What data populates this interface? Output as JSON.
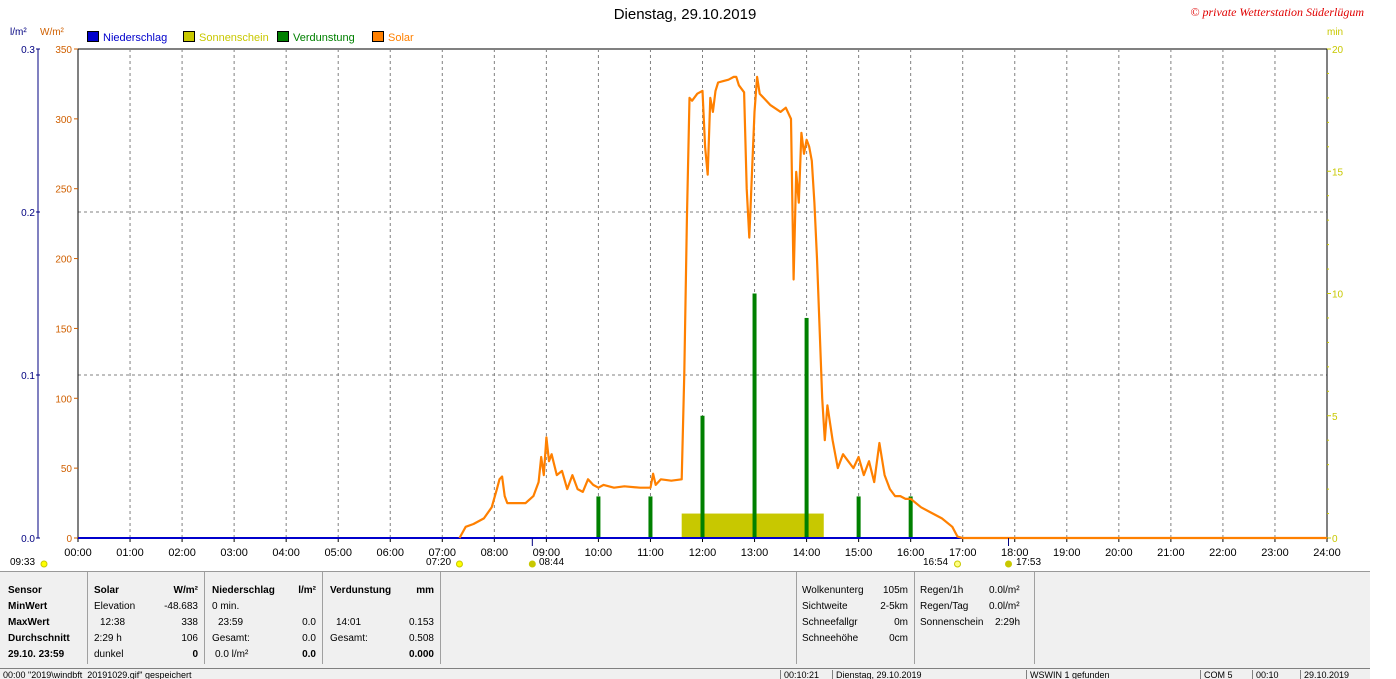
{
  "chart_data": {
    "type": "line",
    "title": "Dienstag, 29.10.2019",
    "x_unit": "hours",
    "x_range": [
      0,
      24
    ],
    "x_ticks": [
      "00:00",
      "01:00",
      "02:00",
      "03:00",
      "04:00",
      "05:00",
      "06:00",
      "07:00",
      "08:00",
      "09:00",
      "10:00",
      "11:00",
      "12:00",
      "13:00",
      "14:00",
      "15:00",
      "16:00",
      "17:00",
      "18:00",
      "19:00",
      "20:00",
      "21:00",
      "22:00",
      "23:00",
      "24:00"
    ],
    "left_axis_rain": {
      "unit": "l/m²",
      "range": [
        0,
        0.3
      ],
      "ticks": [
        "0.0",
        "0.1",
        "0.2",
        "0.3"
      ]
    },
    "left_axis_solar": {
      "unit": "W/m²",
      "range": [
        0,
        350
      ],
      "ticks": [
        "0",
        "50",
        "100",
        "150",
        "200",
        "250",
        "300",
        "350"
      ]
    },
    "right_axis": {
      "unit": "min",
      "range": [
        0,
        20
      ],
      "ticks": [
        "0",
        "5",
        "10",
        "15",
        "20"
      ]
    },
    "legend": [
      {
        "name": "Niederschlag",
        "color": "#0000cc"
      },
      {
        "name": "Sonnenschein",
        "color": "#c8c800"
      },
      {
        "name": "Verdunstung",
        "color": "#008000"
      },
      {
        "name": "Solar",
        "color": "#ff8000"
      }
    ],
    "series": [
      {
        "name": "Solar",
        "unit": "W/m²",
        "color": "#ff8000",
        "points": [
          [
            7.33,
            0
          ],
          [
            7.45,
            8
          ],
          [
            7.6,
            10
          ],
          [
            7.8,
            14
          ],
          [
            7.95,
            22
          ],
          [
            8.05,
            35
          ],
          [
            8.1,
            42
          ],
          [
            8.15,
            44
          ],
          [
            8.2,
            30
          ],
          [
            8.25,
            25
          ],
          [
            8.4,
            25
          ],
          [
            8.6,
            25
          ],
          [
            8.75,
            30
          ],
          [
            8.85,
            40
          ],
          [
            8.9,
            58
          ],
          [
            8.95,
            45
          ],
          [
            9.0,
            72
          ],
          [
            9.05,
            55
          ],
          [
            9.1,
            60
          ],
          [
            9.2,
            45
          ],
          [
            9.3,
            48
          ],
          [
            9.4,
            35
          ],
          [
            9.5,
            45
          ],
          [
            9.6,
            35
          ],
          [
            9.7,
            33
          ],
          [
            9.8,
            42
          ],
          [
            9.9,
            38
          ],
          [
            10.0,
            36
          ],
          [
            10.1,
            38
          ],
          [
            10.3,
            36
          ],
          [
            10.5,
            37
          ],
          [
            10.8,
            36
          ],
          [
            11.0,
            36
          ],
          [
            11.05,
            46
          ],
          [
            11.1,
            38
          ],
          [
            11.2,
            42
          ],
          [
            11.4,
            41
          ],
          [
            11.6,
            42
          ],
          [
            11.65,
            118
          ],
          [
            11.7,
            228
          ],
          [
            11.75,
            315
          ],
          [
            11.8,
            313
          ],
          [
            11.9,
            318
          ],
          [
            12.0,
            320
          ],
          [
            12.05,
            280
          ],
          [
            12.1,
            260
          ],
          [
            12.15,
            315
          ],
          [
            12.2,
            305
          ],
          [
            12.25,
            320
          ],
          [
            12.3,
            326
          ],
          [
            12.4,
            327
          ],
          [
            12.5,
            328
          ],
          [
            12.6,
            330
          ],
          [
            12.65,
            330
          ],
          [
            12.7,
            324
          ],
          [
            12.8,
            319
          ],
          [
            12.85,
            250
          ],
          [
            12.9,
            215
          ],
          [
            12.95,
            260
          ],
          [
            13.0,
            305
          ],
          [
            13.05,
            330
          ],
          [
            13.1,
            318
          ],
          [
            13.3,
            310
          ],
          [
            13.5,
            305
          ],
          [
            13.6,
            308
          ],
          [
            13.7,
            300
          ],
          [
            13.75,
            185
          ],
          [
            13.8,
            262
          ],
          [
            13.85,
            240
          ],
          [
            13.9,
            290
          ],
          [
            13.95,
            275
          ],
          [
            14.0,
            285
          ],
          [
            14.05,
            280
          ],
          [
            14.1,
            270
          ],
          [
            14.15,
            240
          ],
          [
            14.2,
            200
          ],
          [
            14.3,
            100
          ],
          [
            14.35,
            70
          ],
          [
            14.4,
            95
          ],
          [
            14.5,
            70
          ],
          [
            14.6,
            50
          ],
          [
            14.7,
            60
          ],
          [
            14.8,
            55
          ],
          [
            14.9,
            50
          ],
          [
            15.0,
            58
          ],
          [
            15.1,
            45
          ],
          [
            15.2,
            55
          ],
          [
            15.3,
            40
          ],
          [
            15.4,
            68
          ],
          [
            15.5,
            45
          ],
          [
            15.6,
            35
          ],
          [
            15.7,
            30
          ],
          [
            15.8,
            30
          ],
          [
            15.9,
            28
          ],
          [
            16.0,
            28
          ],
          [
            16.2,
            22
          ],
          [
            16.4,
            18
          ],
          [
            16.6,
            14
          ],
          [
            16.8,
            8
          ],
          [
            16.9,
            1
          ],
          [
            17.0,
            0
          ],
          [
            24.0,
            0
          ]
        ]
      },
      {
        "name": "Niederschlag",
        "unit": "l/m²",
        "color": "#0000cc",
        "points": [
          [
            0,
            0
          ],
          [
            24,
            0
          ]
        ]
      },
      {
        "name": "Verdunstung",
        "unit": "bars",
        "color": "#008000",
        "bars": [
          [
            10.0,
            1.7
          ],
          [
            11.0,
            1.7
          ],
          [
            12.0,
            5.0
          ],
          [
            13.0,
            10.0
          ],
          [
            14.0,
            9.0
          ],
          [
            15.0,
            1.7
          ],
          [
            16.0,
            1.7
          ]
        ]
      },
      {
        "name": "Sonnenschein",
        "unit": "min",
        "color": "#c8c800",
        "block": [
          11.6,
          14.33,
          1.0
        ]
      }
    ],
    "markers": [
      {
        "label": "09:33",
        "x_label": "09:33"
      },
      {
        "label": "07:20"
      },
      {
        "label": "08:44"
      },
      {
        "label": "16:54"
      },
      {
        "label": "17:53"
      }
    ],
    "grid": true,
    "legend_placement": "top-left"
  },
  "header": {
    "title": "Dienstag, 29.10.2019",
    "copyright": "© private Wetterstation Süderlügum",
    "unit_rain": "l/m²",
    "unit_solar": "W/m²",
    "unit_min": "min"
  },
  "legend": {
    "niederschlag": "Niederschlag",
    "sonnenschein": "Sonnenschein",
    "verdunstung": "Verdunstung",
    "solar": "Solar"
  },
  "markers": {
    "left_time": "09:33",
    "sunrise": "07:20",
    "m1": "08:44",
    "sunset": "16:54",
    "m2": "17:53"
  },
  "panel": {
    "sensor": "Sensor",
    "minwert": "MinWert",
    "maxwert": "MaxWert",
    "durchschnitt": "Durchschnitt",
    "date": "29.10. 23:59",
    "solar_header": "Solar",
    "solar_unit": "W/m²",
    "solar_r1_label": "Elevation",
    "solar_r1_val": "-48.683",
    "solar_r2_label": "12:38",
    "solar_r2_val": "338",
    "solar_r3_label": "2:29 h",
    "solar_r3_val": "106",
    "solar_r4_label": "dunkel",
    "solar_r4_val": "0",
    "nied_header": "Niederschlag",
    "nied_unit": "l/m²",
    "nied_r1": "0 min.",
    "nied_r2_label": "23:59",
    "nied_r2_val": "0.0",
    "nied_r3_label": "Gesamt:",
    "nied_r3_val": "0.0",
    "nied_r4_label": "0.0 l/m²",
    "nied_r4_val": "0.0",
    "verd_header": "Verdunstung",
    "verd_unit": "mm",
    "verd_r2_label": "14:01",
    "verd_r2_val": "0.153",
    "verd_r3_label": "Gesamt:",
    "verd_r3_val": "0.508",
    "verd_r4_val": "0.000",
    "w1_label": "Wolkenunterg",
    "w1_val": "105m",
    "w2_label": "Sichtweite",
    "w2_val": "2-5km",
    "w3_label": "Schneefallgr",
    "w3_val": "0m",
    "w4_label": "Schneehöhe",
    "w4_val": "0cm",
    "r1_label": "Regen/1h",
    "r1_val": "0.0l/m²",
    "r2_label": "Regen/Tag",
    "r2_val": "0.0l/m²",
    "r3_label": "Sonnenschein",
    "r3_val": "2:29h"
  },
  "status": {
    "s1": "00:00 \"2019\\windbft_20191029.gif\" gespeichert",
    "s2": "00:10:21",
    "s3": "Dienstag, 29.10.2019",
    "s4": "WSWIN 1 gefunden",
    "s5": "COM 5",
    "s6": "00:10",
    "s7": "29.10.2019"
  }
}
